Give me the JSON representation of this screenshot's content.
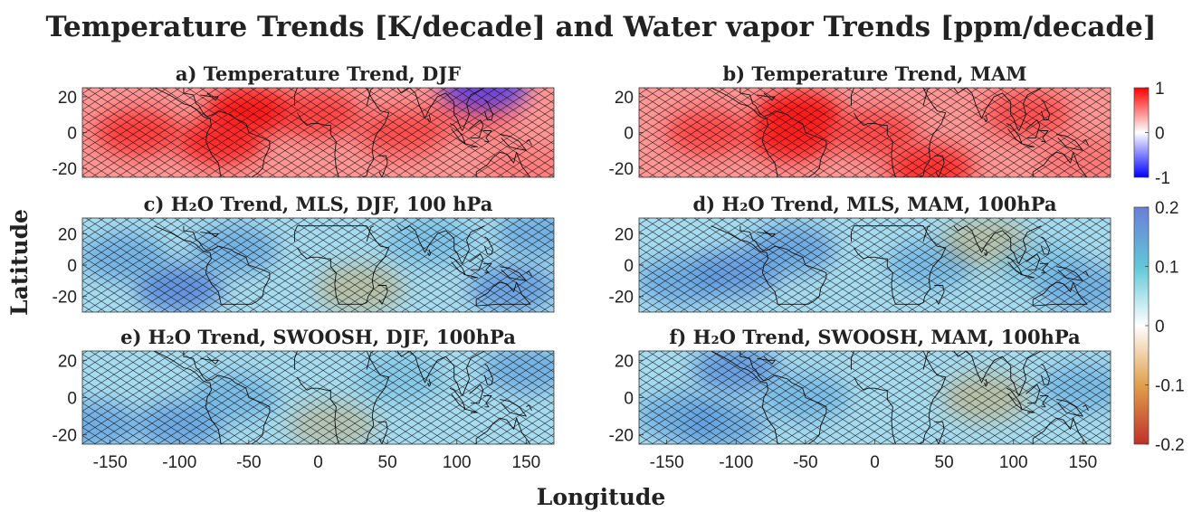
{
  "figure": {
    "title": "Temperature Trends [K/decade] and Water vapor Trends [ppm/decade]",
    "xlabel": "Longitude",
    "ylabel": "Latitude"
  },
  "colorbars": [
    {
      "id": "temperature",
      "range": [
        -1,
        1
      ],
      "ticks": [
        "1",
        "0",
        "-1"
      ],
      "colors": [
        "#0000ff",
        "#ffffff",
        "#ff0000"
      ]
    },
    {
      "id": "h2o",
      "range": [
        -0.2,
        0.2
      ],
      "ticks": [
        "0.2",
        "0.1",
        "0",
        "-0.1",
        "-0.2"
      ],
      "colors": [
        "#c0302a",
        "#e1a04a",
        "#ffffff",
        "#5fc8d8",
        "#6a7ed8"
      ]
    }
  ],
  "colors": {
    "hatch": "#000000",
    "coast": "#111111",
    "temperature_warm": "#ff1a1a",
    "temperature_cold": "#2a2aff",
    "h2o_moist": "#5b78dc",
    "h2o_dry": "#c89a4a"
  },
  "chart_data": [
    {
      "type": "heatmap",
      "title": "a) Temperature Trend, DJF",
      "field": "temperature",
      "x_ticks": [],
      "y_ticks": [
        20,
        0,
        -20
      ],
      "ylim": [
        -25,
        25
      ],
      "xlim": [
        -170,
        170
      ],
      "features": [
        {
          "lon": -50,
          "lat": 12,
          "value": 1.0
        },
        {
          "lon": -70,
          "lat": -5,
          "value": 0.85
        },
        {
          "lon": -130,
          "lat": 0,
          "value": 0.7
        },
        {
          "lon": 0,
          "lat": 10,
          "value": 0.65
        },
        {
          "lon": 60,
          "lat": 0,
          "value": 0.5
        },
        {
          "lon": 110,
          "lat": 10,
          "value": 0.25
        },
        {
          "lon": 120,
          "lat": 25,
          "value": -0.6
        },
        {
          "lon": 150,
          "lat": -20,
          "value": 0.05
        }
      ]
    },
    {
      "type": "heatmap",
      "title": "b) Temperature Trend, MAM",
      "field": "temperature",
      "x_ticks": [],
      "y_ticks": [
        20,
        0,
        -20
      ],
      "ylim": [
        -25,
        25
      ],
      "xlim": [
        -170,
        170
      ],
      "features": [
        {
          "lon": -55,
          "lat": 10,
          "value": 1.0
        },
        {
          "lon": -60,
          "lat": -3,
          "value": 0.9
        },
        {
          "lon": -120,
          "lat": 0,
          "value": 0.6
        },
        {
          "lon": 0,
          "lat": 0,
          "value": 0.6
        },
        {
          "lon": 40,
          "lat": -20,
          "value": 0.8
        },
        {
          "lon": 110,
          "lat": 10,
          "value": 0.55
        },
        {
          "lon": 150,
          "lat": -15,
          "value": 0.1
        }
      ]
    },
    {
      "type": "heatmap",
      "title": "c) H₂O Trend, MLS, DJF, 100 hPa",
      "field": "h2o",
      "x_ticks": [],
      "y_ticks": [
        20,
        0,
        -20
      ],
      "ylim": [
        -30,
        30
      ],
      "xlim": [
        -170,
        170
      ],
      "features": [
        {
          "lon": -100,
          "lat": -15,
          "value": 0.18
        },
        {
          "lon": -140,
          "lat": 5,
          "value": 0.12
        },
        {
          "lon": -60,
          "lat": 10,
          "value": 0.12
        },
        {
          "lon": 30,
          "lat": -15,
          "value": -0.05
        },
        {
          "lon": 80,
          "lat": 15,
          "value": 0.08
        },
        {
          "lon": 140,
          "lat": -15,
          "value": 0.15
        },
        {
          "lon": 160,
          "lat": 20,
          "value": 0.12
        }
      ]
    },
    {
      "type": "heatmap",
      "title": "d) H₂O Trend, MLS, MAM, 100hPa",
      "field": "h2o",
      "x_ticks": [],
      "y_ticks": [
        20,
        0,
        -20
      ],
      "ylim": [
        -30,
        30
      ],
      "xlim": [
        -170,
        170
      ],
      "features": [
        {
          "lon": -100,
          "lat": -5,
          "value": 0.16
        },
        {
          "lon": -140,
          "lat": -10,
          "value": 0.13
        },
        {
          "lon": -60,
          "lat": 10,
          "value": 0.14
        },
        {
          "lon": 40,
          "lat": 0,
          "value": 0.1
        },
        {
          "lon": 80,
          "lat": 15,
          "value": -0.04
        },
        {
          "lon": 120,
          "lat": 0,
          "value": 0.06
        },
        {
          "lon": 150,
          "lat": -15,
          "value": 0.12
        }
      ]
    },
    {
      "type": "heatmap",
      "title": "e) H₂O Trend, SWOOSH, DJF, 100hPa",
      "field": "h2o",
      "x_ticks": [
        -150,
        -100,
        -50,
        0,
        50,
        100,
        150
      ],
      "y_ticks": [
        20,
        0,
        -20
      ],
      "ylim": [
        -25,
        25
      ],
      "xlim": [
        -170,
        170
      ],
      "features": [
        {
          "lon": -100,
          "lat": -15,
          "value": 0.14
        },
        {
          "lon": -160,
          "lat": -15,
          "value": 0.13
        },
        {
          "lon": -60,
          "lat": 0,
          "value": 0.1
        },
        {
          "lon": 10,
          "lat": -15,
          "value": -0.03
        },
        {
          "lon": 60,
          "lat": 10,
          "value": 0.06
        },
        {
          "lon": 150,
          "lat": 15,
          "value": 0.12
        }
      ]
    },
    {
      "type": "heatmap",
      "title": "f) H₂O Trend, SWOOSH, MAM, 100hPa",
      "field": "h2o",
      "x_ticks": [
        -150,
        -100,
        -50,
        0,
        50,
        100,
        150
      ],
      "y_ticks": [
        20,
        0,
        -20
      ],
      "ylim": [
        -25,
        25
      ],
      "xlim": [
        -170,
        170
      ],
      "features": [
        {
          "lon": -100,
          "lat": 15,
          "value": 0.16
        },
        {
          "lon": -140,
          "lat": -10,
          "value": 0.12
        },
        {
          "lon": -50,
          "lat": 0,
          "value": 0.1
        },
        {
          "lon": -110,
          "lat": -15,
          "value": 0.13
        },
        {
          "lon": 80,
          "lat": 0,
          "value": -0.05
        },
        {
          "lon": 150,
          "lat": 5,
          "value": 0.1
        }
      ]
    }
  ]
}
